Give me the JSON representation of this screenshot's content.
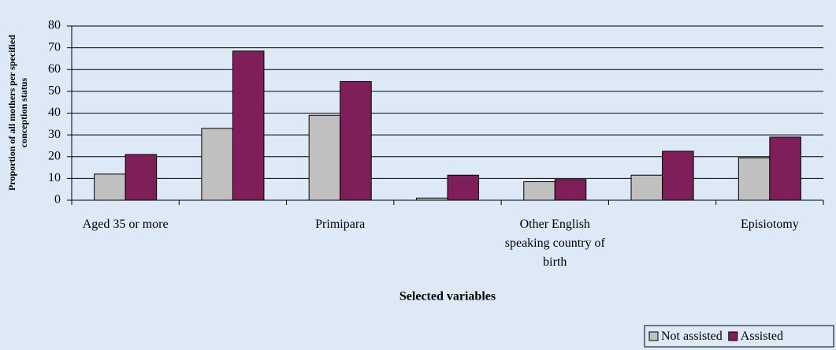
{
  "chart_data": {
    "type": "bar",
    "xlabel": "Selected variables",
    "ylabel": [
      "Proportion of all mothers per specified",
      "conception status"
    ],
    "categories": [
      "Aged 35 or more",
      null,
      "Primipara",
      null,
      "Other English speaking country of birth",
      null,
      "Episiotomy"
    ],
    "series": [
      {
        "name": "Not assisted",
        "color": "#c0c0c0",
        "values": [
          12,
          33,
          39,
          1,
          8.5,
          11.5,
          19.5
        ]
      },
      {
        "name": "Assisted",
        "color": "#7f1f5a",
        "values": [
          21,
          68.5,
          54.5,
          11.5,
          9.5,
          22.5,
          29
        ]
      }
    ],
    "ylim": [
      0,
      80
    ],
    "yticks": [
      0,
      10,
      20,
      30,
      40,
      50,
      60,
      70,
      80
    ],
    "grid": true,
    "legend": "bottom-right"
  }
}
